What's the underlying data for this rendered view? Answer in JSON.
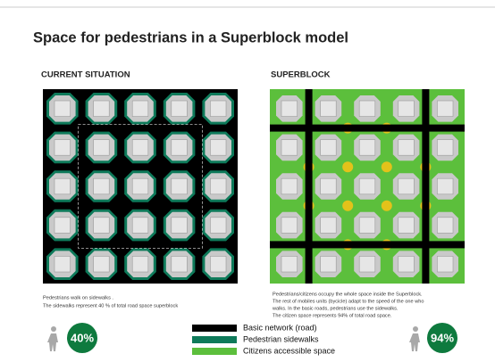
{
  "header": {
    "title": "Space for pedestrians in a Superblock model"
  },
  "panels": [
    {
      "heading": "CURRENT SITUATION",
      "caption": [
        "Pedestrians walk on sidewalks .",
        "The sidewalks represent 40 % of total road space superblock"
      ],
      "percentage": "40%"
    },
    {
      "heading": "SUPERBLOCK",
      "caption": [
        "Pedestrians/citizens occupy the whole space inside the Superblock.",
        "The rest of mobiles units (bycicle) adapt to the speed of the one who",
        "walks. In the basic roads, pedestrians use the sidewalks.",
        "The citizen space represents 94% of total road space."
      ],
      "percentage": "94%"
    }
  ],
  "legend": [
    {
      "label": "Basic network (road)"
    },
    {
      "label": "Pedestrian sidewalks"
    },
    {
      "label": "Citizens accessible space"
    }
  ]
}
